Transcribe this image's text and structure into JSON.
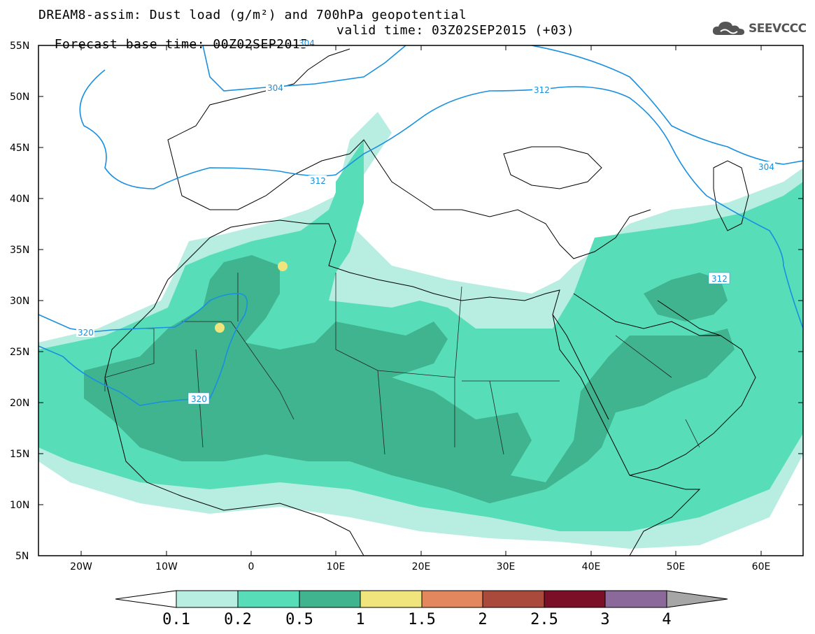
{
  "header": {
    "title_line1": "DREAM8-assim: Dust load (g/m²) and 700hPa geopotential",
    "title_line2_base": "Forecast base time: 00Z02SEP2015",
    "title_line2_valid": "valid time: 03Z02SEP2015 (+03)"
  },
  "logo": {
    "text": "SEEVCCC",
    "icon": "cloud-icon"
  },
  "map": {
    "lat_labels": [
      "55N",
      "50N",
      "45N",
      "40N",
      "35N",
      "30N",
      "25N",
      "20N",
      "15N",
      "10N",
      "5N"
    ],
    "lon_labels": [
      "20W",
      "10W",
      "0",
      "10E",
      "20E",
      "30E",
      "40E",
      "50E",
      "60E"
    ],
    "contour_labels": [
      "304",
      "312",
      "312",
      "312",
      "304",
      "304",
      "320",
      "320"
    ]
  },
  "colorbar": {
    "labels": [
      "0.1",
      "0.2",
      "0.5",
      "1",
      "1.5",
      "2",
      "2.5",
      "3",
      "4"
    ],
    "colors": [
      "#b8ede1",
      "#57deb8",
      "#3fb48e",
      "#f0e57c",
      "#e3875f",
      "#a94a3d",
      "#7a0f27",
      "#8b6a9b"
    ],
    "under_color": "#ffffff",
    "over_color": "#a6a6a6"
  }
}
